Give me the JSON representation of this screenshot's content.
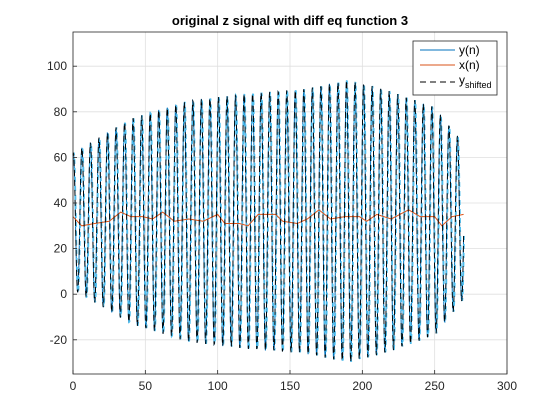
{
  "chart_data": {
    "type": "line",
    "title": "original z  signal with diff eq function 3",
    "xlabel": "",
    "ylabel": "",
    "xlim": [
      0,
      300
    ],
    "ylim": [
      -35,
      115
    ],
    "x_ticks": [
      0,
      50,
      100,
      150,
      200,
      250,
      300
    ],
    "y_ticks": [
      -20,
      0,
      20,
      40,
      60,
      80,
      100
    ],
    "grid": true,
    "legend_position": "top-right",
    "series": [
      {
        "name": "y(n)",
        "color": "#0072BD",
        "style": "solid",
        "description_values": {
          "x_start": 0,
          "x_end": 270,
          "period": 5.9,
          "mean": 32,
          "amplitude_envelope": [
            [
              0,
              30
            ],
            [
              40,
              45
            ],
            [
              80,
              53
            ],
            [
              120,
              56
            ],
            [
              160,
              58
            ],
            [
              190,
              62
            ],
            [
              215,
              58
            ],
            [
              250,
              50
            ],
            [
              270,
              34
            ]
          ]
        }
      },
      {
        "name": "x(n)",
        "color": "#D95319",
        "style": "solid",
        "values_points": [
          [
            0,
            34
          ],
          [
            3,
            32
          ],
          [
            6,
            30
          ],
          [
            15,
            31
          ],
          [
            25,
            32
          ],
          [
            33,
            36
          ],
          [
            40,
            34
          ],
          [
            48,
            34
          ],
          [
            55,
            33
          ],
          [
            62,
            36
          ],
          [
            70,
            32
          ],
          [
            80,
            33
          ],
          [
            90,
            32
          ],
          [
            100,
            35
          ],
          [
            105,
            31
          ],
          [
            115,
            31
          ],
          [
            121,
            30
          ],
          [
            128,
            35
          ],
          [
            140,
            35
          ],
          [
            145,
            32
          ],
          [
            155,
            31
          ],
          [
            162,
            33
          ],
          [
            170,
            37
          ],
          [
            178,
            33
          ],
          [
            188,
            34
          ],
          [
            198,
            34
          ],
          [
            203,
            32
          ],
          [
            210,
            35
          ],
          [
            220,
            33
          ],
          [
            232,
            37
          ],
          [
            240,
            34
          ],
          [
            250,
            34
          ],
          [
            255,
            30
          ],
          [
            262,
            34
          ],
          [
            270,
            35
          ]
        ]
      },
      {
        "name": "y",
        "name_subscript": "shifted",
        "color": "#000000",
        "style": "dashed"
      }
    ],
    "extra_trace": {
      "color": "#4DBEEE",
      "style": "dashed"
    }
  }
}
